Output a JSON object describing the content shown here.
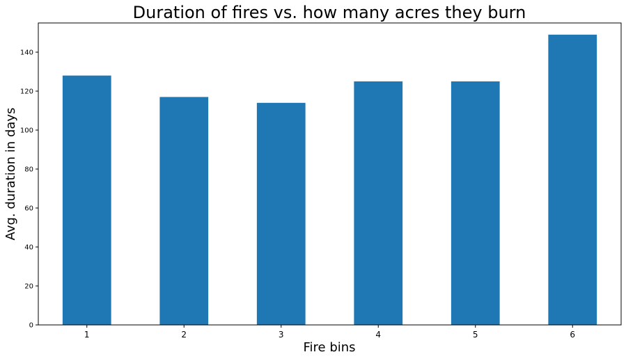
{
  "chart_data": {
    "type": "bar",
    "title": "Duration of fires vs. how many acres they burn",
    "xlabel": "Fire bins",
    "ylabel": "Avg. duration in days",
    "categories": [
      "1",
      "2",
      "3",
      "4",
      "5",
      "6"
    ],
    "values": [
      128,
      117,
      114,
      125,
      125,
      149
    ],
    "ylim": [
      0,
      155
    ],
    "yticks": [
      "0",
      "20",
      "40",
      "60",
      "80",
      "100",
      "120",
      "140"
    ],
    "bar_color": "#1f77b4",
    "grid": false,
    "legend": "none"
  }
}
